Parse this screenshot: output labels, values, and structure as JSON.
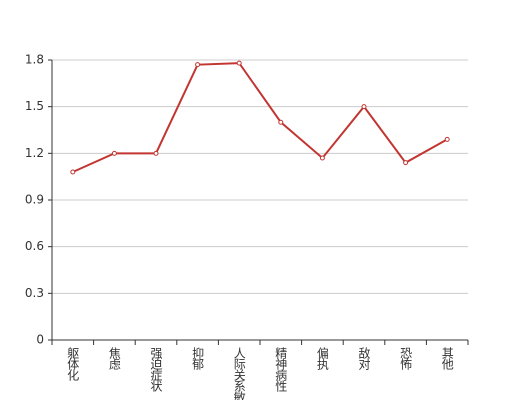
{
  "chart_data": {
    "type": "line",
    "categories": [
      "躯体化",
      "焦虑",
      "强迫症状",
      "抑郁",
      "人际关系敏感",
      "精神病性",
      "偏执",
      "敌对",
      "恐怖",
      "其他"
    ],
    "values": [
      1.08,
      1.2,
      1.2,
      1.77,
      1.78,
      1.4,
      1.17,
      1.5,
      1.14,
      1.29
    ],
    "color": "#c23531",
    "ylim": [
      0,
      1.8
    ],
    "yticks": [
      0,
      0.3,
      0.6,
      0.9,
      1.2,
      1.5,
      1.8
    ],
    "grid": true
  }
}
